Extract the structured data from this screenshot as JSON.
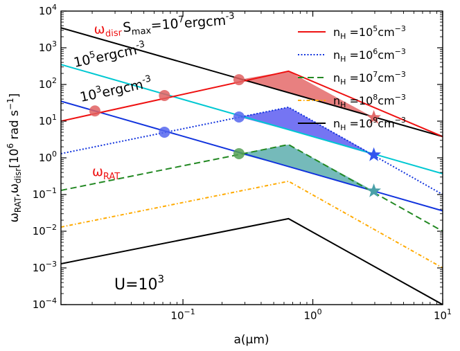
{
  "chart_data": {
    "type": "line",
    "x_scale": "log",
    "y_scale": "log",
    "xlim": [
      0.0115,
      10
    ],
    "ylim": [
      0.0001,
      10000
    ],
    "xlabel_main": "a(μm)",
    "ylabel_parts": {
      "w1": "ω",
      "s1": "RAT",
      "sep": ",",
      "w2": "ω",
      "s2": "disr",
      "unit": "[10",
      "e6": "6",
      "rad": " rad s",
      "em1": "−1",
      "close": "]"
    },
    "x_ticks": [
      {
        "v": 0.1,
        "base": "10",
        "exp": "−1"
      },
      {
        "v": 1,
        "base": "10",
        "exp": "0"
      },
      {
        "v": 10,
        "base": "10",
        "exp": "1"
      }
    ],
    "y_ticks": [
      {
        "v": 0.0001,
        "base": "10",
        "exp": "−4"
      },
      {
        "v": 0.001,
        "base": "10",
        "exp": "−3"
      },
      {
        "v": 0.01,
        "base": "10",
        "exp": "−2"
      },
      {
        "v": 0.1,
        "base": "10",
        "exp": "−1"
      },
      {
        "v": 1,
        "base": "10",
        "exp": "0"
      },
      {
        "v": 10,
        "base": "10",
        "exp": "1"
      },
      {
        "v": 100,
        "base": "10",
        "exp": "2"
      },
      {
        "v": 1000,
        "base": "10",
        "exp": "3"
      },
      {
        "v": 10000,
        "base": "10",
        "exp": "4"
      }
    ],
    "series": [
      {
        "legend": {
          "n": "n",
          "h": "H",
          "eq": " =10",
          "e": "5",
          "unit": "cm",
          "ue": "−3"
        },
        "color": "#ee1111",
        "dash": "",
        "x": [
          0.0115,
          0.65,
          10
        ],
        "y": [
          10,
          230,
          3.8
        ]
      },
      {
        "legend": {
          "n": "n",
          "h": "H",
          "eq": " =10",
          "e": "6",
          "unit": "cm",
          "ue": "−3"
        },
        "color": "#1133dd",
        "dash": "2,2.5",
        "x": [
          0.0115,
          0.65,
          10
        ],
        "y": [
          1.3,
          24,
          0.1
        ]
      },
      {
        "legend": {
          "n": "n",
          "h": "H",
          "eq": " =10",
          "e": "7",
          "unit": "cm",
          "ue": "−3"
        },
        "color": "#228822",
        "dash": "9,5",
        "x": [
          0.0115,
          0.65,
          10
        ],
        "y": [
          0.13,
          2.3,
          0.01
        ]
      },
      {
        "legend": {
          "n": "n",
          "h": "H",
          "eq": " =10",
          "e": "8",
          "unit": "cm",
          "ue": "−3"
        },
        "color": "#ffaa00",
        "dash": "5,3,1.5,3",
        "x": [
          0.0115,
          0.65,
          10
        ],
        "y": [
          0.013,
          0.23,
          0.001
        ]
      },
      {
        "legend": {
          "n": "n",
          "h": "H",
          "eq": " =10",
          "e": "9",
          "unit": "cm",
          "ue": "−3"
        },
        "color": "#000000",
        "dash": "",
        "x": [
          0.0115,
          0.65,
          10
        ],
        "y": [
          0.0013,
          0.022,
          0.0001
        ]
      }
    ],
    "disr_lines": [
      {
        "color": "#000000",
        "x": [
          0.0115,
          10
        ],
        "y": [
          3500,
          3.8
        ]
      },
      {
        "color": "#00c8d2",
        "x": [
          0.0115,
          10
        ],
        "y": [
          350,
          0.37
        ]
      },
      {
        "color": "#1133dd",
        "x": [
          0.0115,
          10
        ],
        "y": [
          35,
          0.036
        ]
      }
    ],
    "circles": [
      {
        "x": 0.021,
        "y": 19,
        "color": "#e06060"
      },
      {
        "x": 0.072,
        "y": 50,
        "color": "#e06060"
      },
      {
        "x": 0.27,
        "y": 135,
        "color": "#e06060"
      },
      {
        "x": 0.072,
        "y": 5,
        "color": "#5566ee"
      },
      {
        "x": 0.27,
        "y": 13,
        "color": "#5566ee"
      },
      {
        "x": 0.27,
        "y": 1.3,
        "color": "#55a055"
      }
    ],
    "stars": [
      {
        "x": 2.95,
        "y": 12.5,
        "color": "#e26a6a"
      },
      {
        "x": 2.95,
        "y": 1.2,
        "color": "#3355ee"
      },
      {
        "x": 2.95,
        "y": 0.125,
        "color": "#4aa0a8"
      }
    ],
    "fills": [
      {
        "color": "#dd4444",
        "x": [
          0.27,
          0.65,
          2.95
        ],
        "y_top": [
          135,
          230,
          12.5
        ],
        "y_bot": [
          135,
          60,
          12.5
        ]
      },
      {
        "color": "#3333ee",
        "x": [
          0.27,
          0.65,
          2.95
        ],
        "y_top": [
          13,
          24,
          1.2
        ],
        "y_bot": [
          13,
          5.7,
          1.2
        ]
      },
      {
        "color": "#339999",
        "x": [
          0.27,
          0.65,
          2.95
        ],
        "y_top": [
          1.3,
          2.3,
          0.125
        ],
        "y_bot": [
          1.3,
          0.57,
          0.125
        ]
      }
    ],
    "annotations": {
      "omega_disr": {
        "w": "ω",
        "sub": "disr"
      },
      "smax": {
        "s": "S",
        "sub": "max",
        "val": "=10",
        "e": "7",
        "unit": "ergcm",
        "ue": "-3"
      },
      "e5": {
        "base": "10",
        "e": "5",
        "unit": "ergcm",
        "ue": "-3"
      },
      "e3": {
        "base": "10",
        "e": "3",
        "unit": "ergcm",
        "ue": "-3"
      },
      "omega_rat": {
        "w": "ω",
        "sub": "RAT"
      },
      "u": {
        "base": "U=10",
        "e": "3"
      }
    },
    "grid": false,
    "legend_placement": "top-right"
  }
}
